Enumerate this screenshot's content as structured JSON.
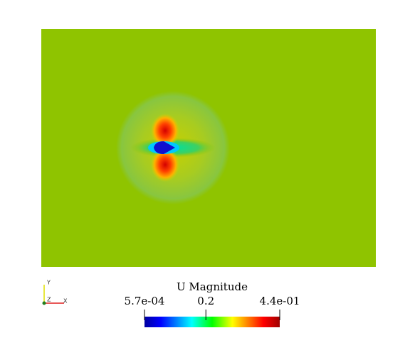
{
  "colorbar": {
    "title": "U Magnitude",
    "ticks": [
      {
        "value": 0.00057,
        "label": "5.7e-04"
      },
      {
        "value": 0.2,
        "label": "0.2"
      },
      {
        "value": 0.44,
        "label": "4.4e-01"
      }
    ]
  },
  "axes_triad": {
    "x": "X",
    "y": "Y",
    "z": "Z"
  }
}
